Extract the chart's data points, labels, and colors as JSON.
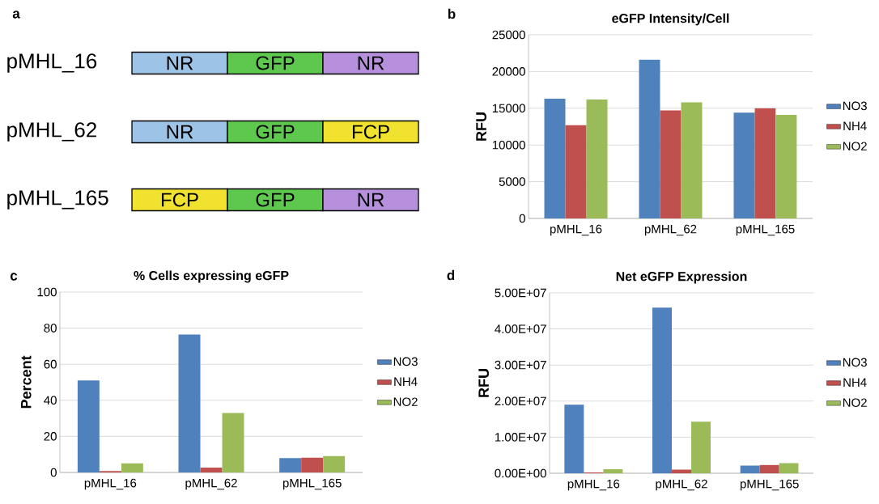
{
  "chart_data": [
    {
      "type": "other",
      "annotations": [
        "a",
        "pMHL_16",
        "pMHL_62",
        "pMHL_165",
        "NR",
        "GFP",
        "NR",
        "NR",
        "GFP",
        "FCP",
        "FCP",
        "GFP",
        "NR"
      ]
    },
    {
      "type": "bar",
      "title": "eGFP Intensity/Cell",
      "ylabel": "RFU",
      "annotations": [
        "b"
      ],
      "categories": [
        "pMHL_16",
        "pMHL_62",
        "pMHL_165"
      ],
      "series": [
        {
          "name": "NO3",
          "color": "#4f81bd",
          "values": [
            16300,
            21600,
            14400
          ]
        },
        {
          "name": "NH4",
          "color": "#c0504d",
          "values": [
            12700,
            14700,
            15000
          ]
        },
        {
          "name": "NO2",
          "color": "#9bbb59",
          "values": [
            16200,
            15800,
            14100
          ]
        }
      ],
      "ylim": [
        0,
        25000
      ],
      "yticks": [
        0,
        5000,
        10000,
        15000,
        20000,
        25000
      ],
      "grid": "y",
      "legend": "right"
    },
    {
      "type": "bar",
      "title": "% Cells expressing eGFP",
      "ylabel": "Percent",
      "annotations": [
        "c"
      ],
      "categories": [
        "pMHL_16",
        "pMHL_62",
        "pMHL_165"
      ],
      "series": [
        {
          "name": "NO3",
          "color": "#4f81bd",
          "values": [
            51,
            76.5,
            7.9
          ]
        },
        {
          "name": "NH4",
          "color": "#c0504d",
          "values": [
            0.8,
            2.7,
            8.2
          ]
        },
        {
          "name": "NO2",
          "color": "#9bbb59",
          "values": [
            5,
            33,
            9.1
          ]
        }
      ],
      "ylim": [
        0,
        100
      ],
      "yticks": [
        0,
        20,
        40,
        60,
        80,
        100
      ],
      "grid": "y",
      "legend": "right"
    },
    {
      "type": "bar",
      "title": "Net eGFP Expression",
      "ylabel": "RFU",
      "annotations": [
        "d"
      ],
      "categories": [
        "pMHL_16",
        "pMHL_62",
        "pMHL_165"
      ],
      "series": [
        {
          "name": "NO3",
          "color": "#4f81bd",
          "values": [
            19000000,
            45900000,
            2100000
          ]
        },
        {
          "name": "NH4",
          "color": "#c0504d",
          "values": [
            200000,
            1000000,
            2300000
          ]
        },
        {
          "name": "NO2",
          "color": "#9bbb59",
          "values": [
            1100000,
            14300000,
            2800000
          ]
        }
      ],
      "ylim": [
        0,
        50000000
      ],
      "yticks": [
        {
          "value": 0,
          "label": "0.00E+00"
        },
        {
          "value": 10000000,
          "label": "1.00E+07"
        },
        {
          "value": 20000000,
          "label": "2.00E+07"
        },
        {
          "value": 30000000,
          "label": "3.00E+07"
        },
        {
          "value": 40000000,
          "label": "4.00E+07"
        },
        {
          "value": 50000000,
          "label": "5.00E+07"
        }
      ],
      "grid": "y",
      "legend": "right"
    }
  ]
}
